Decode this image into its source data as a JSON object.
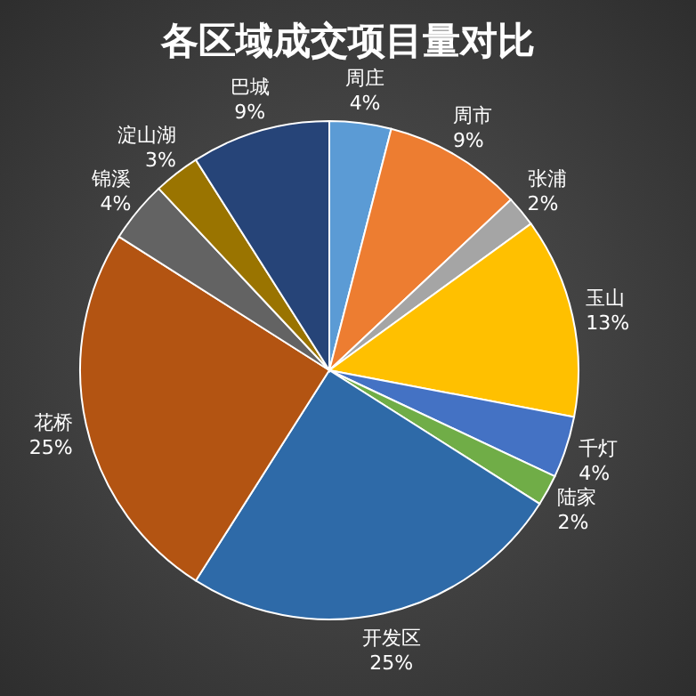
{
  "chart_data": {
    "type": "pie",
    "title": "各区域成交项目量对比",
    "categories": [
      "周庄",
      "周市",
      "张浦",
      "玉山",
      "千灯",
      "陆家",
      "开发区",
      "花桥",
      "锦溪",
      "淀山湖",
      "巴城"
    ],
    "values": [
      4,
      9,
      2,
      13,
      4,
      2,
      25,
      25,
      4,
      3,
      9
    ],
    "value_labels": [
      "4%",
      "9%",
      "2%",
      "13%",
      "4%",
      "2%",
      "25%",
      "25%",
      "4%",
      "3%",
      "9%"
    ],
    "colors": [
      "#5b9bd5",
      "#ed7d31",
      "#a5a5a5",
      "#ffc000",
      "#4472c4",
      "#70ad47",
      "#2e6aa8",
      "#b35412",
      "#636363",
      "#9a7400",
      "#264478"
    ]
  }
}
